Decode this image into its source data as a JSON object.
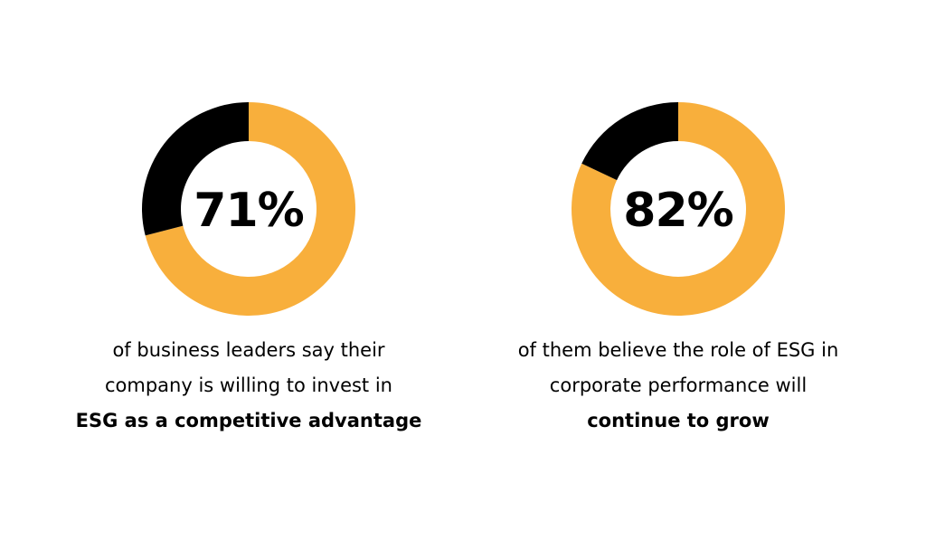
{
  "chart_data": [
    {
      "type": "pie",
      "variant": "donut",
      "center_label": "71%",
      "value": 71,
      "remainder": 29,
      "colors": {
        "value": "#F8AF3C",
        "remainder": "#000000"
      },
      "caption": {
        "line1": "of business leaders say their",
        "line2": "company is willing to invest in",
        "line3_bold": "ESG as a competitive advantage"
      }
    },
    {
      "type": "pie",
      "variant": "donut",
      "center_label": "82%",
      "value": 82,
      "remainder": 18,
      "colors": {
        "value": "#F8AF3C",
        "remainder": "#000000"
      },
      "caption": {
        "line1": "of them believe the role of ESG in",
        "line2": "corporate performance will",
        "line3_bold": "continue to grow"
      }
    }
  ]
}
